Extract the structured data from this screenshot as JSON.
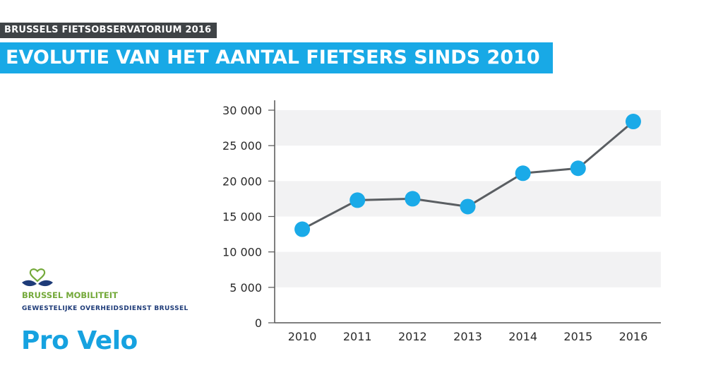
{
  "header": {
    "kicker": "BRUSSELS FIETSOBSERVATORIUM 2016",
    "title": "EVOLUTIE VAN HET AANTAL FIETSERS SINDS 2010"
  },
  "logos": {
    "brussel_mobiliteit": "BRUSSEL MOBILITEIT",
    "brussel_mobiliteit_sub": "GEWESTELIJKE OVERHEIDSDIENST BRUSSEL",
    "pro_velo": "Pro Velo"
  },
  "colors": {
    "accent": "#18a9e6",
    "kicker_bg": "#3f4346",
    "line": "#5a5e62",
    "marker": "#1aaae8",
    "band": "#f2f2f3",
    "axis": "#555555",
    "logo_green": "#74a93a",
    "logo_blue": "#1e3b78"
  },
  "chart_data": {
    "type": "line",
    "categories": [
      "2010",
      "2011",
      "2012",
      "2013",
      "2014",
      "2015",
      "2016"
    ],
    "values": [
      13200,
      17300,
      17500,
      16400,
      21100,
      21800,
      28400
    ],
    "ylim": [
      0,
      30000
    ],
    "yticks": [
      0,
      5000,
      10000,
      15000,
      20000,
      25000,
      30000
    ],
    "ytick_labels": [
      "0",
      "5 000",
      "10 000",
      "15 000",
      "20 000",
      "25 000",
      "30 000"
    ],
    "grid": "alternating horizontal bands",
    "title": "",
    "xlabel": "",
    "ylabel": ""
  }
}
